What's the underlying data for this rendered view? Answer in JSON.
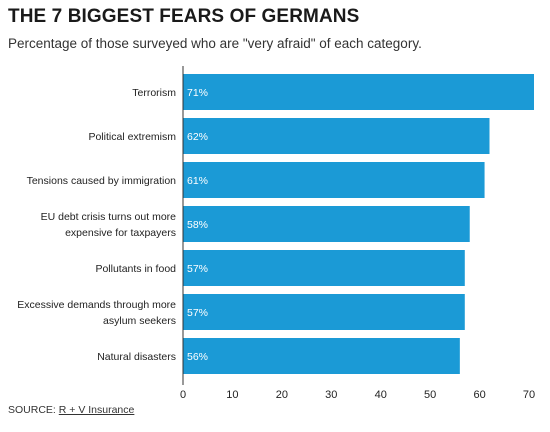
{
  "title": "THE 7 BIGGEST FEARS OF GERMANS",
  "subtitle": "Percentage of those surveyed who are \"very afraid\" of each category.",
  "source": {
    "prefix": "SOURCE: ",
    "link_text": "R + V Insurance"
  },
  "colors": {
    "bar": "#1b9ad6",
    "bar_label": "#ffffff",
    "axis": "#333333"
  },
  "chart_data": {
    "type": "bar",
    "orientation": "horizontal",
    "categories": [
      [
        "Terrorism"
      ],
      [
        "Political extremism"
      ],
      [
        "Tensions caused by immigration"
      ],
      [
        "EU debt crisis turns out more",
        "expensive for taxpayers"
      ],
      [
        "Pollutants in food"
      ],
      [
        "Excessive demands through more",
        "asylum seekers"
      ],
      [
        "Natural disasters"
      ]
    ],
    "values": [
      71,
      62,
      61,
      58,
      57,
      57,
      56
    ],
    "value_labels": [
      "71%",
      "62%",
      "61%",
      "58%",
      "57%",
      "57%",
      "56%"
    ],
    "xlim": [
      0,
      71
    ],
    "xticks": [
      0,
      10,
      20,
      30,
      40,
      50,
      60,
      70
    ],
    "title": "THE 7 BIGGEST FEARS OF GERMANS",
    "xlabel": "",
    "ylabel": "",
    "grid": false,
    "legend": "none"
  }
}
